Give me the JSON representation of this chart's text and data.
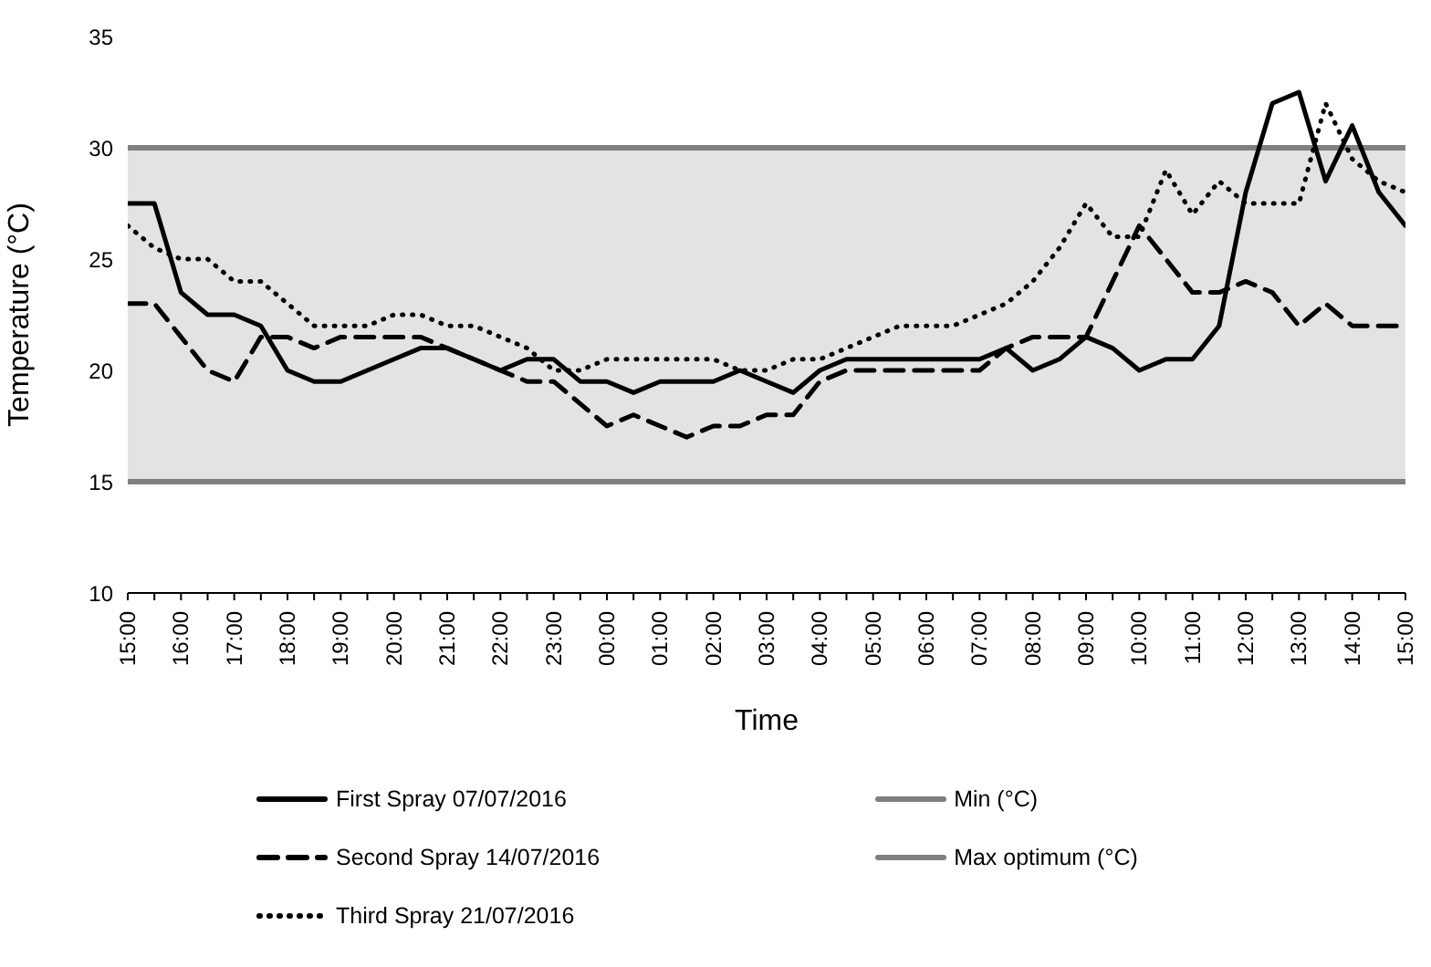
{
  "chart_data": {
    "type": "line",
    "xlabel": "Time",
    "ylabel": "Temperature (°C)",
    "categories": [
      "15:00",
      null,
      "16:00",
      null,
      "17:00",
      null,
      "18:00",
      null,
      "19:00",
      null,
      "20:00",
      null,
      "21:00",
      null,
      "22:00",
      null,
      "23:00",
      null,
      "00:00",
      null,
      "01:00",
      null,
      "02:00",
      null,
      "03:00",
      null,
      "04:00",
      null,
      "05:00",
      null,
      "06:00",
      null,
      "07:00",
      null,
      "08:00",
      null,
      "09:00",
      null,
      "10:00",
      null,
      "11:00",
      null,
      "12:00",
      null,
      "13:00",
      null,
      "14:00",
      null,
      "15:00"
    ],
    "series": [
      {
        "name": "First Spray 07/07/2016",
        "color": "#000000",
        "line_style": "solid",
        "values": [
          27.5,
          27.5,
          23.5,
          22.5,
          22.5,
          22,
          20,
          19.5,
          19.5,
          20,
          20.5,
          21,
          21,
          20.5,
          20,
          20.5,
          20.5,
          19.5,
          19.5,
          19,
          19.5,
          19.5,
          19.5,
          20,
          19.5,
          19,
          20,
          20.5,
          20.5,
          20.5,
          20.5,
          20.5,
          20.5,
          21,
          20,
          20.5,
          21.5,
          21,
          20,
          20.5,
          20.5,
          22,
          28,
          32,
          32.5,
          28.5,
          31,
          28,
          26.5
        ]
      },
      {
        "name": "Second Spray 14/07/2016",
        "color": "#000000",
        "line_style": "dashed",
        "values": [
          23,
          23,
          21.5,
          20,
          19.5,
          21.5,
          21.5,
          21,
          21.5,
          21.5,
          21.5,
          21.5,
          21,
          20.5,
          20,
          19.5,
          19.5,
          18.5,
          17.5,
          18,
          17.5,
          17,
          17.5,
          17.5,
          18,
          18,
          19.5,
          20,
          20,
          20,
          20,
          20,
          20,
          21,
          21.5,
          21.5,
          21.5,
          24,
          26.5,
          25,
          23.5,
          23.5,
          24,
          23.5,
          22,
          23,
          22,
          22,
          22
        ]
      },
      {
        "name": "Third Spray 21/07/2016",
        "color": "#000000",
        "line_style": "dotted",
        "values": [
          26.5,
          25.5,
          25,
          25,
          24,
          24,
          23,
          22,
          22,
          22,
          22.5,
          22.5,
          22,
          22,
          21.5,
          21,
          20,
          20,
          20.5,
          20.5,
          20.5,
          20.5,
          20.5,
          20,
          20,
          20.5,
          20.5,
          21,
          21.5,
          22,
          22,
          22,
          22.5,
          23,
          24,
          25.5,
          27.5,
          26,
          26,
          29,
          27,
          28.5,
          27.5,
          27.5,
          27.5,
          32,
          29.5,
          28.5,
          28
        ]
      }
    ],
    "ref_lines": [
      {
        "axis": "y",
        "value": 15,
        "label": "Min (°C)",
        "color": "#808080"
      },
      {
        "axis": "y",
        "value": 30,
        "label": "Max optimum (°C)",
        "color": "#808080"
      }
    ],
    "bands": [
      {
        "axis": "y",
        "from": 15,
        "to": 30,
        "color": "#e3e3e3"
      }
    ],
    "ylim": [
      10,
      35
    ],
    "yticks": [
      10,
      15,
      20,
      25,
      30,
      35
    ],
    "grid": false,
    "legend": "bottom",
    "marker": "none"
  }
}
